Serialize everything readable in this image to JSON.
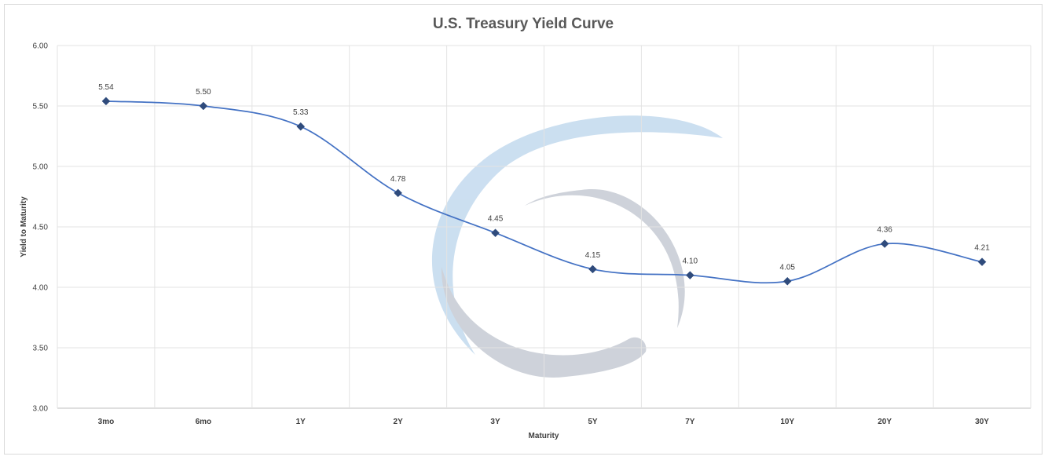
{
  "chart_data": {
    "type": "line",
    "title": "U.S. Treasury Yield Curve",
    "xlabel": "Maturity",
    "ylabel": "Yield to Maturity",
    "categories": [
      "3mo",
      "6mo",
      "1Y",
      "2Y",
      "3Y",
      "5Y",
      "7Y",
      "10Y",
      "20Y",
      "30Y"
    ],
    "series": [
      {
        "values": [
          5.54,
          5.5,
          5.33,
          4.78,
          4.45,
          4.15,
          4.1,
          4.05,
          4.36,
          4.21
        ]
      }
    ],
    "data_labels": [
      "5.54",
      "5.50",
      "5.33",
      "4.78",
      "4.45",
      "4.15",
      "4.10",
      "4.05",
      "4.36",
      "4.21"
    ],
    "yticks": [
      "3.00",
      "3.50",
      "4.00",
      "4.50",
      "5.00",
      "5.50",
      "6.00"
    ],
    "ylim": [
      3.0,
      6.0
    ],
    "grid": true,
    "legend": "none",
    "line_color": "#4472c4",
    "marker_color": "#2f4b7c",
    "marker": "diamond",
    "smooth": true,
    "watermark": "logo"
  }
}
